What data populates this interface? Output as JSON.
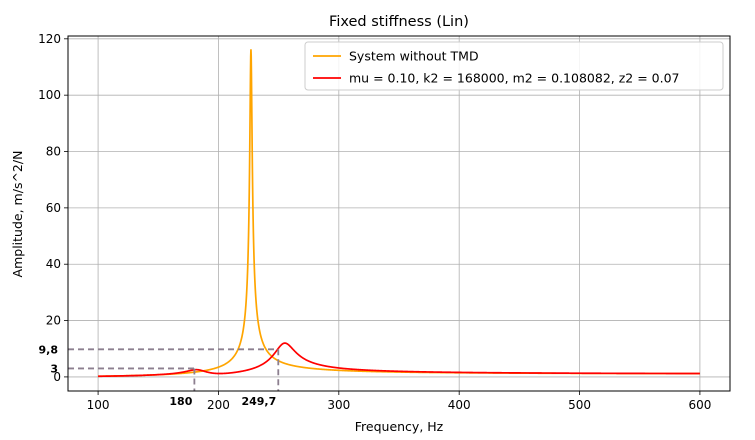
{
  "chart_data": {
    "type": "line",
    "title": "Fixed stiffness (Lin)",
    "xlabel": "Frequency, Hz",
    "ylabel": "Amplitude, m/s^2/N",
    "xlim": [
      75,
      625
    ],
    "ylim": [
      -5,
      121
    ],
    "xticks": [
      100,
      200,
      300,
      400,
      500,
      600
    ],
    "yticks": [
      0,
      20,
      40,
      60,
      80,
      100,
      120
    ],
    "grid": true,
    "legend_position": "top-right",
    "series": [
      {
        "name": "System without TMD",
        "color": "#ffa500",
        "model": {
          "type": "sdof",
          "fn": 227,
          "zeta": 0.0043,
          "scale": 1.0
        }
      },
      {
        "name": "mu = 0.10, k2 = 168000, m2 = 0.108082, z2 = 0.07",
        "color": "#ff0000",
        "model": {
          "type": "tmd",
          "fn": 227,
          "zeta": 0.0043,
          "mu": 0.1,
          "f2": 197.8,
          "z2": 0.07,
          "scale": 1.0
        }
      }
    ],
    "x_range": [
      100,
      600
    ],
    "annotations": [
      {
        "kind": "hline",
        "y": 9.8,
        "x_end": 249.7,
        "label": "9,8",
        "color": "#8c7f8f"
      },
      {
        "kind": "hline",
        "y": 3,
        "x_end": 180,
        "label": "3",
        "color": "#8c7f8f"
      },
      {
        "kind": "vline",
        "x": 180,
        "y_end": 3,
        "label": "180",
        "color": "#8c7f8f"
      },
      {
        "kind": "vline",
        "x": 249.7,
        "y_end": 9.8,
        "label": "249,7",
        "color": "#8c7f8f"
      }
    ]
  }
}
